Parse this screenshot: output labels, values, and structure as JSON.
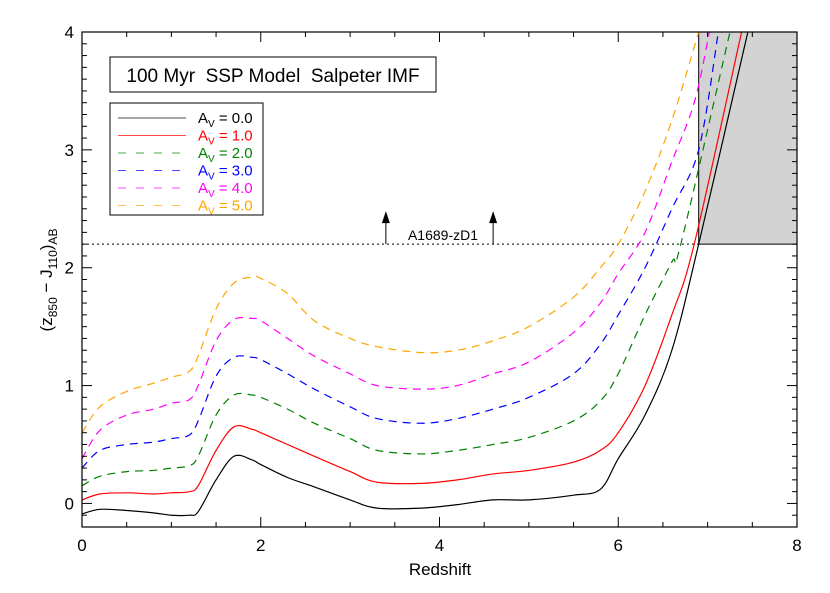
{
  "chart_data": {
    "type": "line",
    "title": "100 Myr  SSP Model  Salpeter IMF",
    "xlabel": "Redshift",
    "ylabel": {
      "open": "(z",
      "sub1": "850",
      "mid": " − J",
      "sub2": "110",
      "close": ")",
      "sub3": "AB"
    },
    "xlim": [
      0,
      8
    ],
    "ylim": [
      -0.2,
      4
    ],
    "xticks": [
      "0",
      "2",
      "4",
      "6",
      "8"
    ],
    "yticks": [
      "0",
      "1",
      "2",
      "3",
      "4"
    ],
    "legend_position": "upper-left",
    "x": [
      0,
      0.2,
      0.5,
      0.8,
      1.0,
      1.2,
      1.3,
      1.5,
      1.7,
      1.9,
      2.0,
      2.3,
      2.6,
      3.0,
      3.3,
      3.8,
      4.2,
      4.6,
      5.0,
      5.5,
      5.8,
      6.0,
      6.3,
      6.6
    ],
    "series": [
      {
        "name": "A_V = 0.0",
        "label_main": "A",
        "label_sub": "V",
        "label_val": " = 0.0",
        "color": "#000000",
        "dash": "solid",
        "values": [
          -0.09,
          -0.05,
          -0.06,
          -0.08,
          -0.1,
          -0.1,
          -0.07,
          0.2,
          0.4,
          0.37,
          0.33,
          0.22,
          0.14,
          0.03,
          -0.04,
          -0.04,
          -0.01,
          0.03,
          0.03,
          0.07,
          0.12,
          0.38,
          0.75,
          1.3
        ],
        "tail": [
          [
            6.9,
            2.2
          ],
          [
            7.45,
            4.0
          ]
        ]
      },
      {
        "name": "A_V = 1.0",
        "label_main": "A",
        "label_sub": "V",
        "label_val": " = 1.0",
        "color": "#ff0000",
        "dash": "solid",
        "values": [
          0.03,
          0.08,
          0.09,
          0.08,
          0.09,
          0.1,
          0.15,
          0.45,
          0.65,
          0.63,
          0.6,
          0.5,
          0.4,
          0.27,
          0.18,
          0.17,
          0.2,
          0.25,
          0.28,
          0.35,
          0.45,
          0.6,
          1.0,
          1.6
        ],
        "tail": [
          [
            6.85,
            2.2
          ],
          [
            7.38,
            4.0
          ]
        ]
      },
      {
        "name": "A_V = 2.0",
        "label_main": "A",
        "label_sub": "V",
        "label_val": " = 2.0",
        "color": "#008000",
        "dash": "dashed",
        "values": [
          0.15,
          0.23,
          0.27,
          0.28,
          0.3,
          0.32,
          0.4,
          0.75,
          0.92,
          0.92,
          0.9,
          0.8,
          0.68,
          0.55,
          0.45,
          0.42,
          0.45,
          0.5,
          0.56,
          0.7,
          0.87,
          1.1,
          1.6,
          2.05
        ],
        "tail": [
          [
            6.7,
            2.2
          ],
          [
            7.25,
            4.0
          ]
        ]
      },
      {
        "name": "A_V = 3.0",
        "label_main": "A",
        "label_sub": "V",
        "label_val": " = 3.0",
        "color": "#0000ff",
        "dash": "dashed",
        "values": [
          0.3,
          0.45,
          0.5,
          0.52,
          0.55,
          0.58,
          0.7,
          1.08,
          1.24,
          1.24,
          1.22,
          1.1,
          0.97,
          0.82,
          0.72,
          0.68,
          0.72,
          0.8,
          0.9,
          1.1,
          1.35,
          1.6,
          2.0,
          2.5
        ],
        "tail": [
          [
            6.9,
            3.0
          ],
          [
            7.12,
            4.0
          ]
        ]
      },
      {
        "name": "A_V = 4.0",
        "label_main": "A",
        "label_sub": "V",
        "label_val": " = 4.0",
        "color": "#ff00ff",
        "dash": "dashed",
        "values": [
          0.38,
          0.62,
          0.75,
          0.8,
          0.85,
          0.88,
          1.0,
          1.38,
          1.56,
          1.57,
          1.55,
          1.4,
          1.25,
          1.1,
          1.0,
          0.97,
          1.0,
          1.1,
          1.2,
          1.45,
          1.7,
          1.95,
          2.3,
          2.9
        ],
        "tail": [
          [
            6.85,
            3.4
          ],
          [
            7.02,
            4.0
          ]
        ]
      },
      {
        "name": "A_V = 5.0",
        "label_main": "A",
        "label_sub": "V",
        "label_val": " = 5.0",
        "color": "#ffa500",
        "dash": "dashed",
        "values": [
          0.6,
          0.82,
          0.95,
          1.02,
          1.07,
          1.12,
          1.25,
          1.65,
          1.87,
          1.92,
          1.91,
          1.78,
          1.55,
          1.4,
          1.33,
          1.28,
          1.3,
          1.38,
          1.5,
          1.75,
          2.0,
          2.2,
          2.65,
          3.25
        ],
        "tail": [
          [
            6.9,
            4.0
          ]
        ]
      }
    ],
    "threshold": {
      "y": 2.2,
      "x_start": 6.9,
      "label": "A1689-zD1",
      "arrows_x": [
        3.4,
        4.6
      ],
      "fill_color": "#d3d3d3"
    }
  }
}
